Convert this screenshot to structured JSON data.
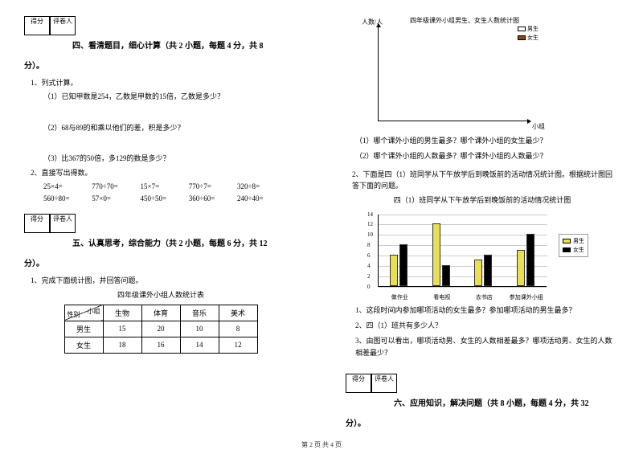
{
  "score_header": {
    "score": "得分",
    "grader": "评卷人"
  },
  "section4": {
    "title": "四、看清题目，细心计算（共 2 小题，每题 4 分，共 8",
    "title_cont": "分）。",
    "q1": "1、列式计算。",
    "q1_1": "（1）已知甲数是254，乙数是甲数的15倍，乙数是多少？",
    "q1_2": "（2）68与89的和乘以他们的差，积是多少？",
    "q1_3": "（3）比367的50倍，多129的数是多少？",
    "q2": "2、直接写出得数。",
    "calc": [
      [
        "25×4=",
        "770÷70=",
        "15×7=",
        "770÷7=",
        "320÷8="
      ],
      [
        "560÷80=",
        "57×0=",
        "450÷50=",
        "360÷60=",
        "240÷40="
      ]
    ]
  },
  "section5": {
    "title": "五、认真思考，综合能力（共 2 小题，每题 6 分，共 12",
    "title_cont": "分）。",
    "q1": "1、完成下面统计图，并回答问题。",
    "table_title": "四年级课外小组人数统计表",
    "table": {
      "diag_top": "小组",
      "diag_bot": "性别",
      "cols": [
        "生物",
        "体育",
        "音乐",
        "美术"
      ],
      "rows": [
        {
          "label": "男生",
          "vals": [
            "15",
            "20",
            "10",
            "8"
          ]
        },
        {
          "label": "女生",
          "vals": [
            "18",
            "16",
            "14",
            "12"
          ]
        }
      ]
    }
  },
  "chart1": {
    "title": "四年级课外小组男生、女生人数统计图",
    "ylabel": "人数/人",
    "xlabel": "小组",
    "legend": [
      {
        "label": "男生",
        "color": "#ffffff"
      },
      {
        "label": "女生",
        "color": "#8b4513"
      }
    ]
  },
  "right_qs": {
    "q1": "（1）哪个课外小组的男生最多？哪个课外小组的女生最少？",
    "q2": "（2）哪个课外小组的人数最多？哪个课外小组的人数最少？"
  },
  "q2_intro": "2、下面是四（1）班同学从下午放学后到晚饭前的活动情况统计图。根据统计图回答下面的问题。",
  "chart2": {
    "title": "四（1）班同学从下午放学后到晚饭前的活动情况统计图",
    "ymax": 14,
    "ytick": 2,
    "categories": [
      "做作业",
      "看电视",
      "去书店",
      "参加课外小组"
    ],
    "series": [
      {
        "name": "男生",
        "color": "#e8e050",
        "vals": [
          6,
          12,
          5,
          7
        ]
      },
      {
        "name": "女生",
        "color": "#000000",
        "vals": [
          8,
          4,
          6,
          10
        ]
      }
    ],
    "grid_color": "#cccccc",
    "legend_labels": [
      "男生",
      "女生"
    ]
  },
  "chart2_qs": {
    "q1": "1、这段时间内参加哪项活动的女生最多？参加哪项活动的男生最多？",
    "q2": "2、四（1）班共有多少人？",
    "q3": "3、由图可以看出，哪项活动男、女生的人数相差最多？哪项活动男、女生的人数相差最少？"
  },
  "section6": {
    "title": "六、应用知识，解决问题（共 8 小题，每题 4 分，共 32",
    "title_cont": "分）。"
  },
  "footer": "第 2 页 共 4 页"
}
